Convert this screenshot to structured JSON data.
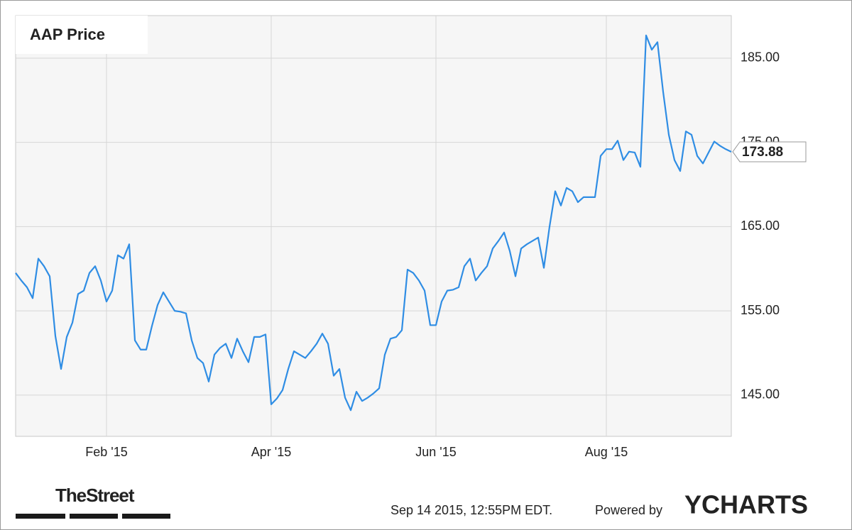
{
  "chart_data": {
    "type": "line",
    "title": "AAP Price",
    "categories": [
      null,
      null,
      null,
      null,
      null,
      null,
      null,
      null,
      null,
      null,
      null,
      null,
      null,
      null,
      null,
      null,
      "Feb '15",
      null,
      null,
      null,
      null,
      null,
      null,
      null,
      null,
      null,
      null,
      null,
      null,
      null,
      null,
      null,
      null,
      null,
      null,
      null,
      null,
      null,
      null,
      null,
      null,
      null,
      null,
      null,
      null,
      "Apr '15",
      null,
      null,
      null,
      null,
      null,
      null,
      null,
      null,
      null,
      null,
      null,
      null,
      null,
      null,
      null,
      null,
      null,
      null,
      null,
      null,
      null,
      null,
      null,
      null,
      null,
      null,
      null,
      null,
      "Jun '15",
      null,
      null,
      null,
      null,
      null,
      null,
      null,
      null,
      null,
      null,
      null,
      null,
      null,
      null,
      null,
      null,
      null,
      null,
      null,
      null,
      null,
      null,
      null,
      null,
      null,
      null,
      null,
      null,
      null,
      "Aug '15",
      null,
      null,
      null,
      null,
      null,
      null,
      null,
      null,
      null,
      null,
      null,
      null,
      null,
      null,
      null,
      null,
      null,
      null,
      null,
      null,
      null,
      null
    ],
    "series": [
      {
        "name": "AAP Price",
        "color": "#2f8de4",
        "values": [
          159.5,
          158.6,
          157.8,
          156.5,
          161.2,
          160.3,
          159.1,
          152.0,
          148.1,
          151.9,
          153.6,
          157.0,
          157.4,
          159.5,
          160.3,
          158.6,
          156.1,
          157.4,
          161.6,
          161.2,
          162.9,
          151.5,
          150.4,
          150.4,
          153.2,
          155.7,
          157.2,
          156.1,
          155.0,
          154.9,
          154.7,
          151.5,
          149.4,
          148.8,
          146.6,
          149.8,
          150.6,
          151.1,
          149.4,
          151.7,
          150.2,
          148.9,
          151.9,
          151.9,
          152.2,
          143.9,
          144.6,
          145.6,
          148.1,
          150.2,
          149.8,
          149.4,
          150.2,
          151.1,
          152.3,
          151.1,
          147.3,
          148.1,
          144.7,
          143.2,
          145.4,
          144.3,
          144.7,
          145.2,
          145.8,
          149.8,
          151.7,
          151.9,
          152.7,
          159.9,
          159.5,
          158.6,
          157.4,
          153.3,
          153.3,
          156.1,
          157.4,
          157.5,
          157.8,
          160.3,
          161.2,
          158.6,
          159.5,
          160.3,
          162.4,
          163.3,
          164.3,
          162.1,
          159.1,
          162.4,
          162.9,
          163.3,
          163.7,
          160.1,
          165.0,
          169.2,
          167.5,
          169.6,
          169.2,
          167.9,
          168.5,
          168.5,
          168.5,
          173.4,
          174.2,
          174.2,
          175.2,
          172.9,
          173.9,
          173.8,
          172.1,
          187.7,
          186.0,
          186.9,
          181.0,
          175.9,
          172.9,
          171.6,
          176.3,
          175.9,
          173.4,
          172.5,
          173.8,
          175.1,
          174.6,
          174.2,
          173.88
        ]
      }
    ],
    "current_label": "173.88",
    "ylim": [
      140.1,
      190.05
    ],
    "yticks": [
      {
        "value": 145,
        "label": "145.00"
      },
      {
        "value": 155,
        "label": "155.00"
      },
      {
        "value": 165,
        "label": "165.00"
      },
      {
        "value": 175,
        "label": "175.00"
      },
      {
        "value": 185,
        "label": "185.00"
      }
    ],
    "grid": true
  },
  "footer": {
    "publisher": "TheStreet",
    "timestamp": "Sep 14 2015, 12:55PM EDT.",
    "powered_by": "Powered by",
    "brand": "YCHARTS"
  }
}
